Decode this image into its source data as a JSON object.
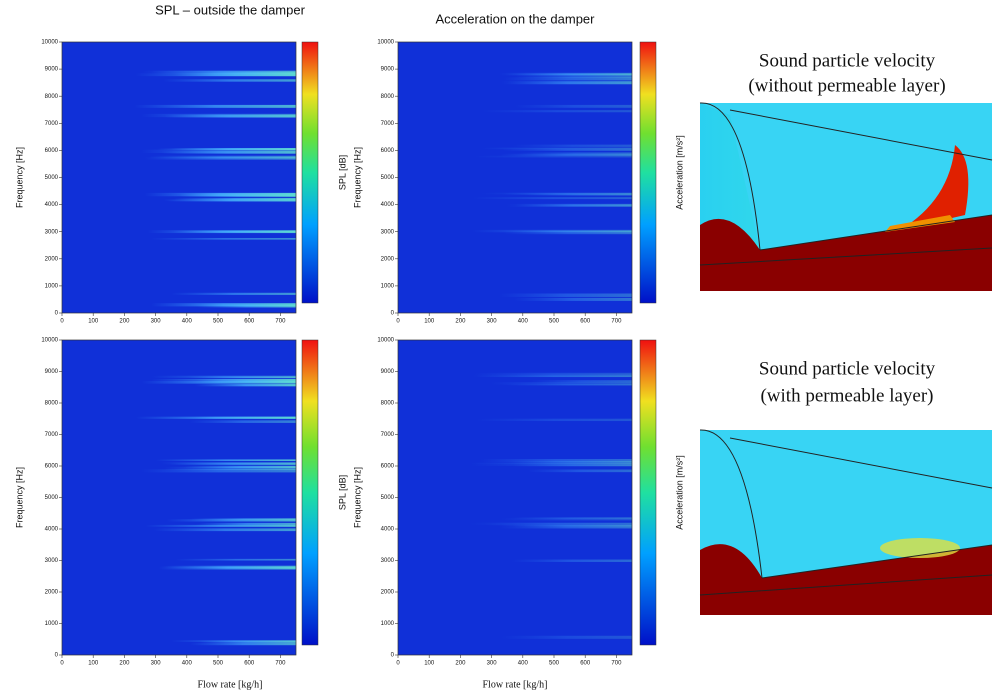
{
  "columns": [
    "SPL – outside the damper",
    "Acceleration on the damper"
  ],
  "y_label": "Frequency [Hz]",
  "x_label": "Flow rate   [kg/h]",
  "colorbar_labels": [
    "SPL [dB]",
    "Acceleration [m/s²]"
  ],
  "xlim": [
    0,
    750
  ],
  "ylim": [
    0,
    10000
  ],
  "xticks": [
    0,
    100,
    200,
    300,
    400,
    500,
    600,
    700
  ],
  "yticks": [
    0,
    1000,
    2000,
    3000,
    4000,
    5000,
    6000,
    7000,
    8000,
    9000,
    10000
  ],
  "simulations": [
    {
      "title": "Sound particle velocity",
      "subtitle": "(without permeable layer)"
    },
    {
      "title": "Sound particle velocity",
      "subtitle": "(with permeable layer)"
    }
  ]
}
